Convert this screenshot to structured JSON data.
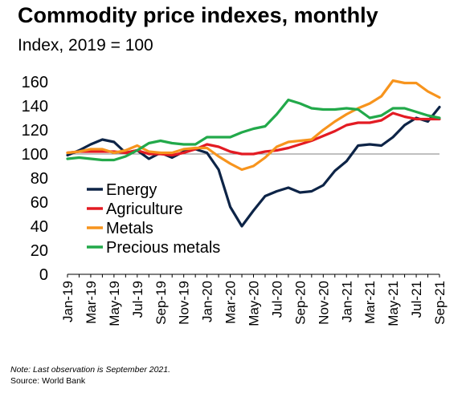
{
  "title": "Commodity price indexes, monthly",
  "subtitle": "Index, 2019 = 100",
  "note": "Note: Last observation is September 2021.",
  "source": "Source: World Bank",
  "chart_data": {
    "type": "line",
    "x_tick_labels": [
      "Jan-19",
      "Mar-19",
      "May-19",
      "Jul-19",
      "Sep-19",
      "Nov-19",
      "Jan-20",
      "Mar-20",
      "May-20",
      "Jul-20",
      "Sep-20",
      "Nov-20",
      "Jan-21",
      "Mar-21",
      "May-21",
      "Jul-21",
      "Sep-21"
    ],
    "months": [
      "Jan-19",
      "Feb-19",
      "Mar-19",
      "Apr-19",
      "May-19",
      "Jun-19",
      "Jul-19",
      "Aug-19",
      "Sep-19",
      "Oct-19",
      "Nov-19",
      "Dec-19",
      "Jan-20",
      "Feb-20",
      "Mar-20",
      "Apr-20",
      "May-20",
      "Jun-20",
      "Jul-20",
      "Aug-20",
      "Sep-20",
      "Oct-20",
      "Nov-20",
      "Dec-20",
      "Jan-21",
      "Feb-21",
      "Mar-21",
      "Apr-21",
      "May-21",
      "Jun-21",
      "Jul-21",
      "Aug-21",
      "Sep-21"
    ],
    "y_ticks": [
      0,
      20,
      40,
      60,
      80,
      100,
      120,
      140,
      160
    ],
    "ylim": [
      0,
      170
    ],
    "reference_line": 100,
    "series": [
      {
        "name": "Energy",
        "color": "#0d2447",
        "values": [
          99,
          103,
          108,
          112,
          110,
          101,
          103,
          96,
          101,
          97,
          102,
          104,
          101,
          87,
          56,
          40,
          53,
          65,
          69,
          72,
          68,
          69,
          74,
          86,
          94,
          107,
          108,
          107,
          114,
          124,
          130,
          127,
          139
        ]
      },
      {
        "name": "Agriculture",
        "color": "#e31b23",
        "values": [
          101,
          102,
          102,
          102,
          102,
          101,
          103,
          100,
          100,
          99,
          101,
          104,
          108,
          106,
          102,
          100,
          100,
          102,
          103,
          105,
          108,
          111,
          115,
          119,
          124,
          126,
          126,
          128,
          134,
          131,
          129,
          129,
          129
        ]
      },
      {
        "name": "Metals",
        "color": "#f7941d",
        "values": [
          101,
          102,
          104,
          104,
          101,
          103,
          107,
          102,
          101,
          101,
          104,
          105,
          105,
          98,
          92,
          87,
          90,
          97,
          106,
          110,
          111,
          112,
          120,
          127,
          133,
          138,
          142,
          148,
          161,
          159,
          159,
          152,
          147
        ]
      },
      {
        "name": "Precious metals",
        "color": "#22a94a",
        "values": [
          96,
          97,
          96,
          95,
          95,
          98,
          103,
          109,
          111,
          109,
          108,
          108,
          114,
          114,
          114,
          118,
          121,
          123,
          133,
          145,
          142,
          138,
          137,
          137,
          138,
          137,
          130,
          132,
          138,
          138,
          135,
          132,
          130
        ]
      }
    ]
  }
}
